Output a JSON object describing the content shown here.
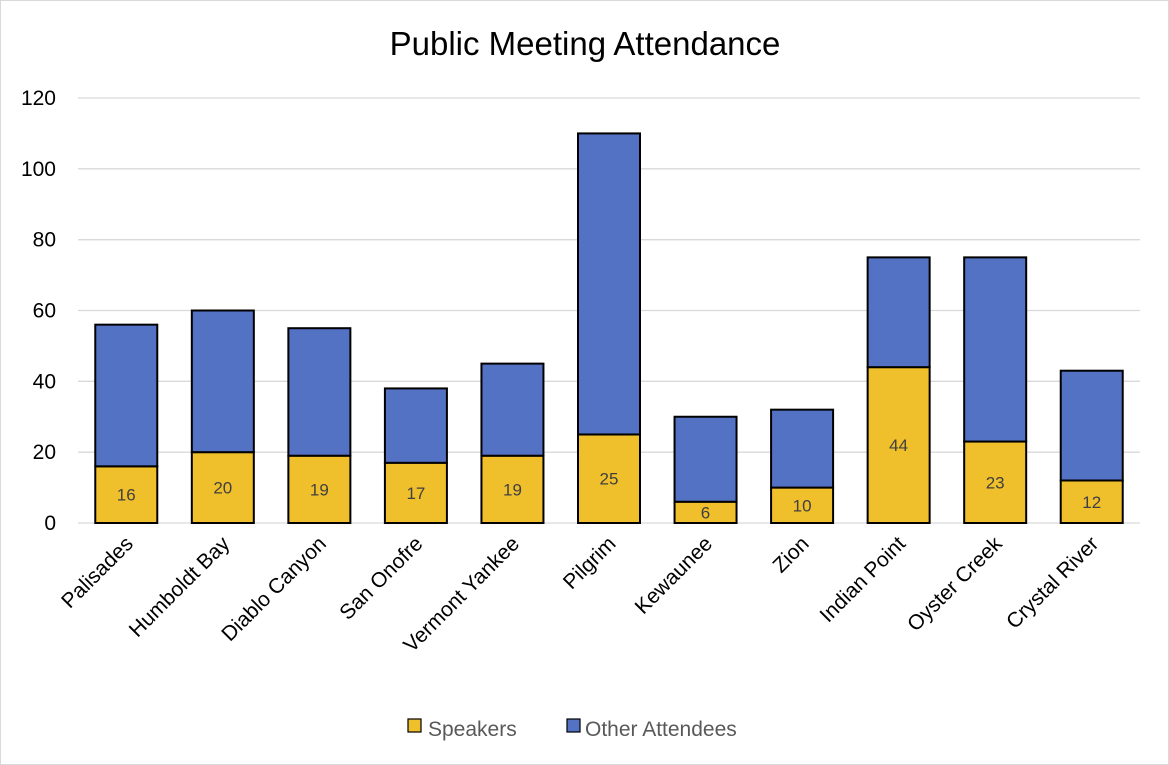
{
  "chart_data": {
    "type": "bar",
    "stacked": true,
    "title": "Public Meeting Attendance",
    "xlabel": "",
    "ylabel": "",
    "ylim": [
      0,
      120
    ],
    "yticks": [
      0,
      20,
      40,
      60,
      80,
      100,
      120
    ],
    "grid": true,
    "legend_position": "bottom",
    "categories": [
      "Palisades",
      "Humboldt Bay",
      "Diablo Canyon",
      "San Onofre",
      "Vermont Yankee",
      "Pilgrim",
      "Kewaunee",
      "Zion",
      "Indian Point",
      "Oyster Creek",
      "Crystal River"
    ],
    "series": [
      {
        "name": "Speakers",
        "color": "#f0bf2c",
        "values": [
          16,
          20,
          19,
          17,
          19,
          25,
          6,
          10,
          44,
          23,
          12
        ],
        "data_labels": true
      },
      {
        "name": "Other Attendees",
        "color": "#5472c4",
        "values": [
          40,
          40,
          36,
          21,
          26,
          85,
          24,
          22,
          31,
          52,
          31
        ],
        "data_labels": false
      }
    ]
  }
}
